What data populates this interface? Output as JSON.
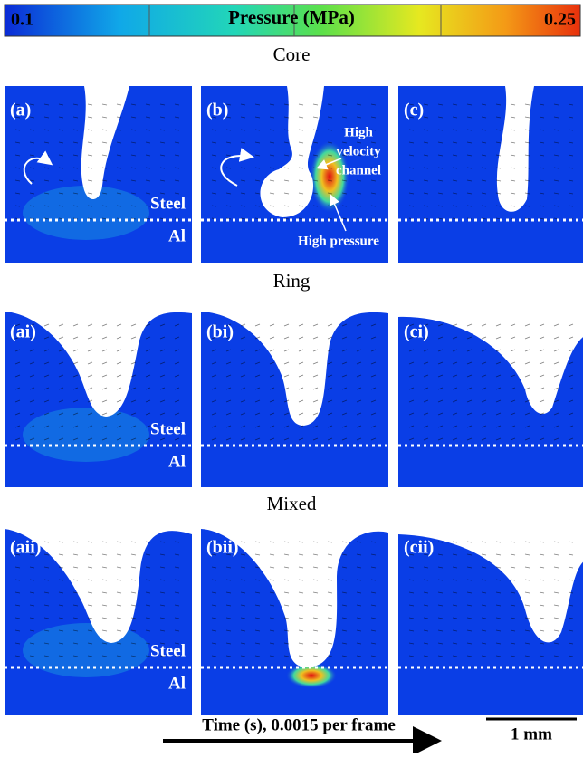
{
  "colorbar": {
    "min": "0.1",
    "title": "Pressure (MPa)",
    "max": "0.25"
  },
  "rows": [
    {
      "title": "Core",
      "panels": [
        "(a)",
        "(b)",
        "(c)"
      ],
      "steel": "Steel",
      "al": "Al"
    },
    {
      "title": "Ring",
      "panels": [
        "(ai)",
        "(bi)",
        "(ci)"
      ],
      "steel": "Steel",
      "al": "Al"
    },
    {
      "title": "Mixed",
      "panels": [
        "(aii)",
        "(bii)",
        "(cii)"
      ],
      "steel": "Steel",
      "al": "Al"
    }
  ],
  "annotations": {
    "channel": [
      "High",
      "velocity",
      "channel"
    ],
    "pressure": "High pressure"
  },
  "footer": {
    "time": "Time (s), 0.0015 per frame",
    "scale": "1 mm"
  }
}
